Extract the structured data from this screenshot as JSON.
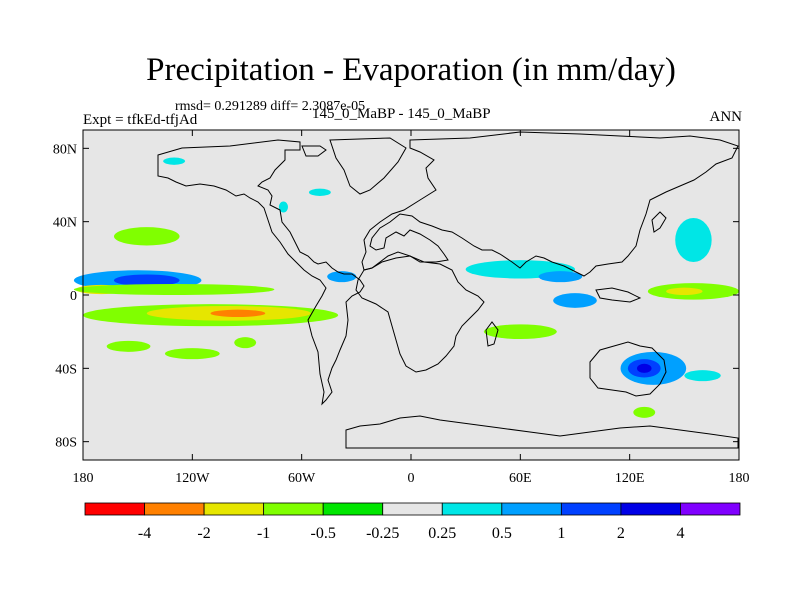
{
  "title": "Precipitation - Evaporation (in mm/day)",
  "stats": "rmsd= 0.291289 diff= 2.3087e-05",
  "left_subtitle": "Expt = tfkEd-tfjAd",
  "center_subtitle": "145_0_MaBP - 145_0_MaBP",
  "right_subtitle": "ANN",
  "map": {
    "projection": "cylindrical-equidistant",
    "lon_range": [
      -180,
      180
    ],
    "lat_range": [
      -90,
      90
    ],
    "background_color": "#e6e6e6",
    "coastline_color": "#000000",
    "x_ticks": [
      {
        "lon": -180,
        "label": "180"
      },
      {
        "lon": -120,
        "label": "120W"
      },
      {
        "lon": -60,
        "label": "60W"
      },
      {
        "lon": 0,
        "label": "0"
      },
      {
        "lon": 60,
        "label": "60E"
      },
      {
        "lon": 120,
        "label": "120E"
      },
      {
        "lon": 180,
        "label": "180"
      }
    ],
    "y_ticks": [
      {
        "lat": 80,
        "label": "80N"
      },
      {
        "lat": 40,
        "label": "40N"
      },
      {
        "lat": 0,
        "label": "0"
      },
      {
        "lat": -40,
        "label": "40S"
      },
      {
        "lat": -80,
        "label": "80S"
      }
    ],
    "anomaly_regions": [
      {
        "lon": -145,
        "lat": 32,
        "rlon": 18,
        "rlat": 5,
        "level": "-0.5"
      },
      {
        "lon": -150,
        "lat": 8,
        "rlon": 35,
        "rlat": 5.5,
        "level": "0.5"
      },
      {
        "lon": -145,
        "lat": 8,
        "rlon": 18,
        "rlat": 3.2,
        "level": "1"
      },
      {
        "lon": -170,
        "lat": 3,
        "rlon": 14,
        "rlat": 2.5,
        "level": "-1"
      },
      {
        "lon": -130,
        "lat": 3,
        "rlon": 55,
        "rlat": 3,
        "level": "-0.5"
      },
      {
        "lon": -110,
        "lat": -11,
        "rlon": 70,
        "rlat": 6,
        "level": "-0.5"
      },
      {
        "lon": -100,
        "lat": -10,
        "rlon": 45,
        "rlat": 4,
        "level": "-1"
      },
      {
        "lon": -95,
        "lat": -10,
        "rlon": 15,
        "rlat": 2,
        "level": "-2"
      },
      {
        "lon": -155,
        "lat": -28,
        "rlon": 12,
        "rlat": 3,
        "level": "-0.5"
      },
      {
        "lon": -120,
        "lat": -32,
        "rlon": 15,
        "rlat": 3,
        "level": "-0.5"
      },
      {
        "lon": -91,
        "lat": -26,
        "rlon": 6,
        "rlat": 3,
        "level": "-0.5"
      },
      {
        "lon": -70,
        "lat": 48,
        "rlon": 2.5,
        "rlat": 3,
        "level": "0.25"
      },
      {
        "lon": -38,
        "lat": 10,
        "rlon": 8,
        "rlat": 3,
        "level": "0.5"
      },
      {
        "lon": 60,
        "lat": 14,
        "rlon": 30,
        "rlat": 5,
        "level": "0.25"
      },
      {
        "lon": 82,
        "lat": 10,
        "rlon": 12,
        "rlat": 3,
        "level": "0.5"
      },
      {
        "lon": 90,
        "lat": -3,
        "rlon": 12,
        "rlat": 4,
        "level": "0.5"
      },
      {
        "lon": 60,
        "lat": -20,
        "rlon": 20,
        "rlat": 4,
        "level": "-0.5"
      },
      {
        "lon": 155,
        "lat": 30,
        "rlon": 10,
        "rlat": 12,
        "level": "0.25"
      },
      {
        "lon": 155,
        "lat": 2,
        "rlon": 25,
        "rlat": 4.5,
        "level": "-0.5"
      },
      {
        "lon": 150,
        "lat": 2,
        "rlon": 10,
        "rlat": 2,
        "level": "-1"
      },
      {
        "lon": 133,
        "lat": -40,
        "rlon": 18,
        "rlat": 9,
        "level": "0.5"
      },
      {
        "lon": 128,
        "lat": -40,
        "rlon": 9,
        "rlat": 5,
        "level": "1"
      },
      {
        "lon": 128,
        "lat": -40,
        "rlon": 4,
        "rlat": 2.5,
        "level": "2"
      },
      {
        "lon": 160,
        "lat": -44,
        "rlon": 10,
        "rlat": 3,
        "level": "0.25"
      },
      {
        "lon": 128,
        "lat": -64,
        "rlon": 6,
        "rlat": 3,
        "level": "-0.5"
      },
      {
        "lon": -130,
        "lat": 73,
        "rlon": 6,
        "rlat": 2,
        "level": "0.25"
      },
      {
        "lon": -50,
        "lat": 56,
        "rlon": 6,
        "rlat": 2,
        "level": "0.25"
      }
    ]
  },
  "colorbar": {
    "colors": [
      "#ff0000",
      "#ff8000",
      "#e6e600",
      "#80ff00",
      "#00e600",
      "#e6e6e6",
      "#00e6e6",
      "#00a0ff",
      "#0040ff",
      "#0000e6",
      "#8000ff"
    ],
    "labels": [
      "-4",
      "-2",
      "-1",
      "-0.5",
      "-0.25",
      "0.25",
      "0.5",
      "1",
      "2",
      "4"
    ]
  }
}
